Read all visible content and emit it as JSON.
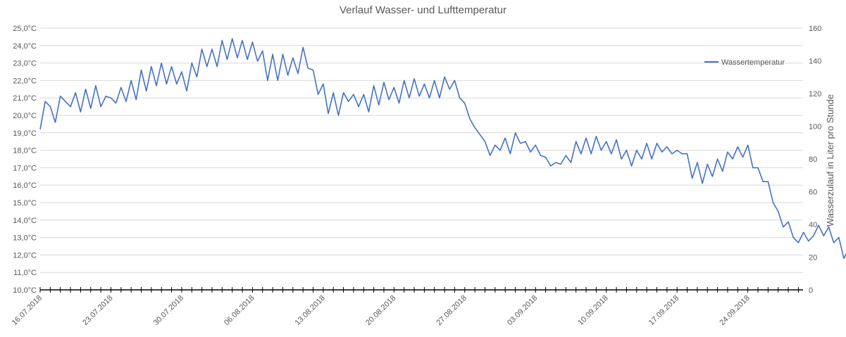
{
  "chart_data": {
    "type": "line",
    "title": "Verlauf Wasser- und Lufttemperatur",
    "xlabel": "",
    "ylabel": "",
    "y2label": "Wasserzulauf in Liter pro Stunde",
    "x_ticks": [
      "16.07.2018",
      "23.07.2018",
      "30.07.2018",
      "06.08.2018",
      "13.08.2018",
      "20.08.2018",
      "27.08.2018",
      "03.09.2018",
      "10.09.2018",
      "17.09.2018",
      "24.09.2018"
    ],
    "y_ticks": [
      "10,0°C",
      "11,0°C",
      "12,0°C",
      "13,0°C",
      "14,0°C",
      "15,0°C",
      "16,0°C",
      "17,0°C",
      "18,0°C",
      "19,0°C",
      "20,0°C",
      "21,0°C",
      "22,0°C",
      "23,0°C",
      "24,0°C",
      "25,0°C"
    ],
    "y2_ticks": [
      "0",
      "20",
      "40",
      "60",
      "80",
      "100",
      "120",
      "140",
      "160"
    ],
    "ylim": [
      10,
      25
    ],
    "y2lim": [
      0,
      160
    ],
    "xlim_days": [
      0,
      76.5
    ],
    "grid": true,
    "legend_position": "right",
    "series": [
      {
        "name": "Wassertemperatur",
        "color": "#4472C4",
        "points": [
          [
            0.0,
            19.2
          ],
          [
            0.5,
            20.8
          ],
          [
            1.0,
            20.5
          ],
          [
            1.5,
            19.6
          ],
          [
            2.0,
            21.1
          ],
          [
            2.5,
            20.8
          ],
          [
            3.0,
            20.5
          ],
          [
            3.5,
            21.3
          ],
          [
            4.0,
            20.2
          ],
          [
            4.5,
            21.5
          ],
          [
            5.0,
            20.4
          ],
          [
            5.5,
            21.7
          ],
          [
            6.0,
            20.5
          ],
          [
            6.5,
            21.1
          ],
          [
            7.0,
            21.0
          ],
          [
            7.5,
            20.7
          ],
          [
            8.0,
            21.6
          ],
          [
            8.5,
            20.8
          ],
          [
            9.0,
            22.0
          ],
          [
            9.5,
            20.9
          ],
          [
            10.0,
            22.6
          ],
          [
            10.5,
            21.4
          ],
          [
            11.0,
            22.8
          ],
          [
            11.5,
            21.7
          ],
          [
            12.0,
            23.0
          ],
          [
            12.5,
            21.8
          ],
          [
            13.0,
            22.8
          ],
          [
            13.5,
            21.8
          ],
          [
            14.0,
            22.5
          ],
          [
            14.5,
            21.4
          ],
          [
            15.0,
            23.0
          ],
          [
            15.5,
            22.2
          ],
          [
            16.0,
            23.8
          ],
          [
            16.5,
            22.8
          ],
          [
            17.0,
            23.8
          ],
          [
            17.5,
            22.8
          ],
          [
            18.0,
            24.3
          ],
          [
            18.5,
            23.2
          ],
          [
            19.0,
            24.4
          ],
          [
            19.5,
            23.3
          ],
          [
            20.0,
            24.3
          ],
          [
            20.5,
            23.2
          ],
          [
            21.0,
            24.2
          ],
          [
            21.5,
            23.1
          ],
          [
            22.0,
            23.7
          ],
          [
            22.5,
            22.0
          ],
          [
            23.0,
            23.5
          ],
          [
            23.5,
            22.0
          ],
          [
            24.0,
            23.5
          ],
          [
            24.5,
            22.3
          ],
          [
            25.0,
            23.3
          ],
          [
            25.5,
            22.4
          ],
          [
            26.0,
            23.9
          ],
          [
            26.5,
            22.7
          ],
          [
            27.0,
            22.6
          ],
          [
            27.5,
            21.2
          ],
          [
            28.0,
            21.8
          ],
          [
            28.5,
            20.1
          ],
          [
            29.0,
            21.3
          ],
          [
            29.5,
            20.0
          ],
          [
            30.0,
            21.3
          ],
          [
            30.5,
            20.8
          ],
          [
            31.0,
            21.2
          ],
          [
            31.5,
            20.5
          ],
          [
            32.0,
            21.2
          ],
          [
            32.5,
            20.2
          ],
          [
            33.0,
            21.7
          ],
          [
            33.5,
            20.6
          ],
          [
            34.0,
            21.9
          ],
          [
            34.5,
            20.9
          ],
          [
            35.0,
            21.6
          ],
          [
            35.5,
            20.7
          ],
          [
            36.0,
            22.0
          ],
          [
            36.5,
            21.0
          ],
          [
            37.0,
            22.1
          ],
          [
            37.5,
            21.1
          ],
          [
            38.0,
            21.8
          ],
          [
            38.5,
            21.0
          ],
          [
            39.0,
            22.0
          ],
          [
            39.5,
            21.0
          ],
          [
            40.0,
            22.2
          ],
          [
            40.5,
            21.5
          ],
          [
            41.0,
            22.0
          ],
          [
            41.5,
            21.0
          ],
          [
            42.0,
            20.7
          ],
          [
            42.5,
            19.8
          ],
          [
            43.0,
            19.3
          ],
          [
            43.5,
            18.9
          ],
          [
            44.0,
            18.5
          ],
          [
            44.5,
            17.7
          ],
          [
            45.0,
            18.3
          ],
          [
            45.5,
            18.0
          ],
          [
            46.0,
            18.7
          ],
          [
            46.5,
            17.8
          ],
          [
            47.0,
            19.0
          ],
          [
            47.5,
            18.4
          ],
          [
            48.0,
            18.5
          ],
          [
            48.5,
            17.9
          ],
          [
            49.0,
            18.3
          ],
          [
            49.5,
            17.7
          ],
          [
            50.0,
            17.6
          ],
          [
            50.5,
            17.1
          ],
          [
            51.0,
            17.3
          ],
          [
            51.5,
            17.2
          ],
          [
            52.0,
            17.7
          ],
          [
            52.5,
            17.3
          ],
          [
            53.0,
            18.5
          ],
          [
            53.5,
            17.8
          ],
          [
            54.0,
            18.7
          ],
          [
            54.5,
            17.8
          ],
          [
            55.0,
            18.8
          ],
          [
            55.5,
            18.0
          ],
          [
            56.0,
            18.5
          ],
          [
            56.5,
            17.8
          ],
          [
            57.0,
            18.6
          ],
          [
            57.5,
            17.5
          ],
          [
            58.0,
            18.0
          ],
          [
            58.5,
            17.1
          ],
          [
            59.0,
            18.0
          ],
          [
            59.5,
            17.5
          ],
          [
            60.0,
            18.4
          ],
          [
            60.5,
            17.5
          ],
          [
            61.0,
            18.4
          ],
          [
            61.5,
            17.9
          ],
          [
            62.0,
            18.2
          ],
          [
            62.5,
            17.8
          ],
          [
            63.0,
            18.0
          ],
          [
            63.5,
            17.8
          ],
          [
            64.0,
            17.8
          ],
          [
            64.5,
            16.4
          ],
          [
            65.0,
            17.3
          ],
          [
            65.5,
            16.1
          ],
          [
            66.0,
            17.2
          ],
          [
            66.5,
            16.5
          ],
          [
            67.0,
            17.5
          ],
          [
            67.5,
            16.8
          ],
          [
            68.0,
            17.9
          ],
          [
            68.5,
            17.5
          ],
          [
            69.0,
            18.2
          ],
          [
            69.5,
            17.6
          ],
          [
            70.0,
            18.3
          ],
          [
            70.5,
            17.0
          ],
          [
            71.0,
            17.0
          ],
          [
            71.5,
            16.2
          ],
          [
            72.0,
            16.2
          ],
          [
            72.5,
            15.0
          ],
          [
            73.0,
            14.5
          ],
          [
            73.5,
            13.6
          ],
          [
            74.0,
            13.9
          ],
          [
            74.5,
            13.0
          ],
          [
            75.0,
            12.7
          ],
          [
            75.5,
            13.3
          ],
          [
            76.0,
            12.8
          ],
          [
            76.5,
            13.1
          ],
          [
            77.0,
            13.7
          ],
          [
            77.5,
            13.1
          ],
          [
            78.0,
            13.6
          ],
          [
            78.5,
            12.7
          ],
          [
            79.0,
            13.0
          ],
          [
            79.5,
            11.8
          ],
          [
            80.0,
            12.4
          ],
          [
            80.5,
            12.1
          ]
        ]
      }
    ]
  }
}
